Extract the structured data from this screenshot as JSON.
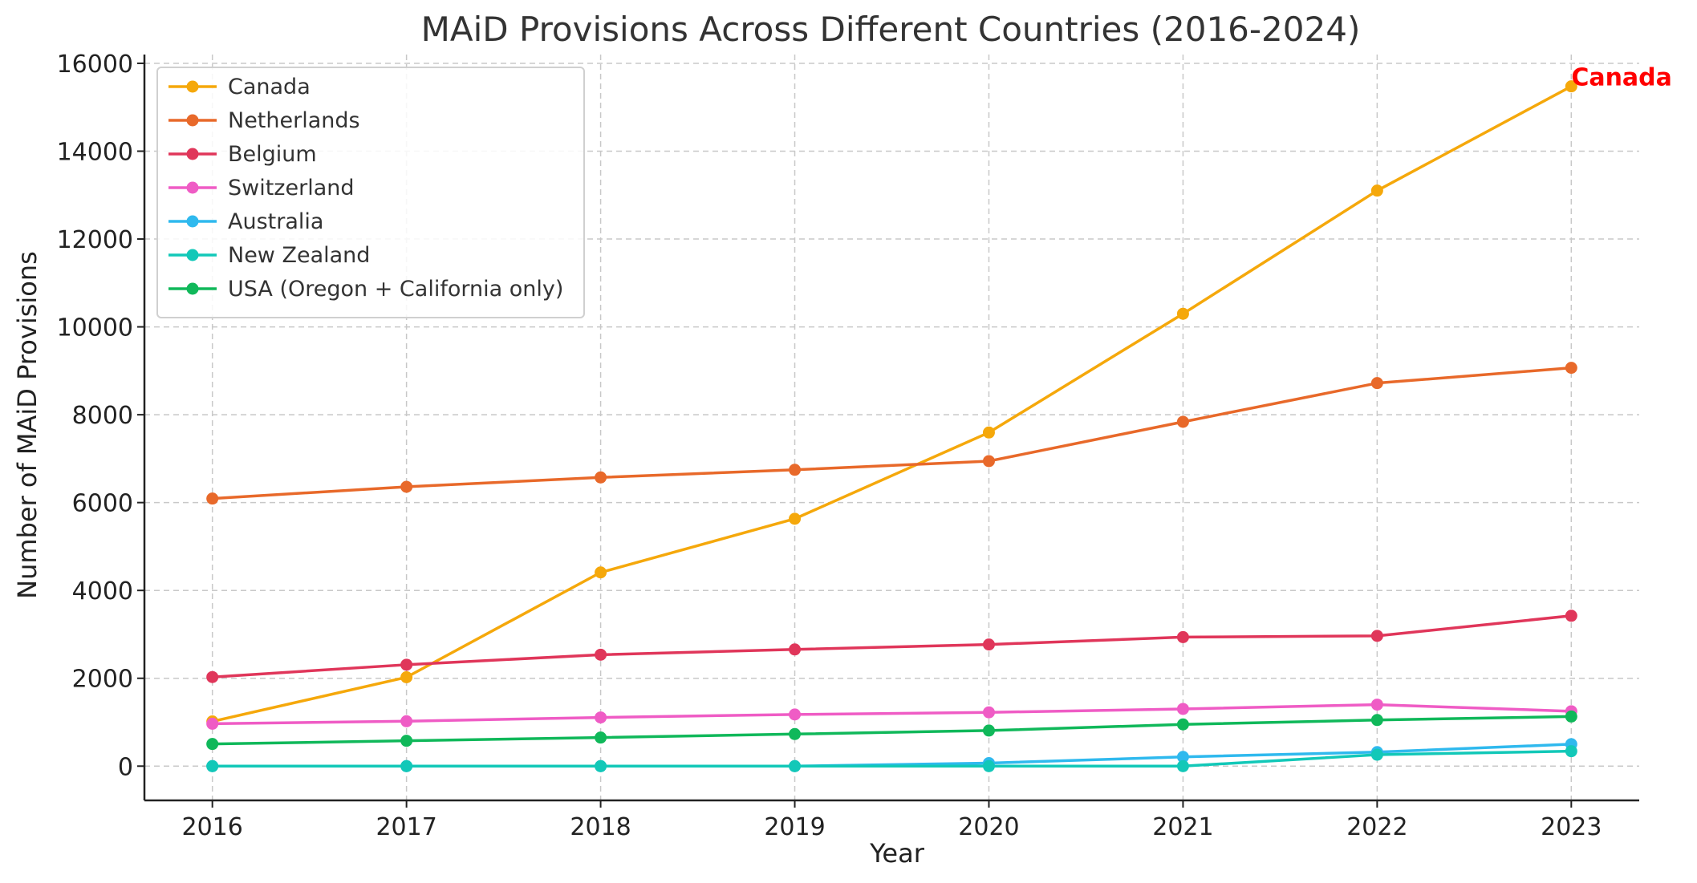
{
  "chart_data": {
    "type": "line",
    "title": "MAiD Provisions Across Different Countries (2016-2024)",
    "xlabel": "Year",
    "ylabel": "Number of MAiD Provisions",
    "categories": [
      "2016",
      "2017",
      "2018",
      "2019",
      "2020",
      "2021",
      "2022",
      "2023"
    ],
    "xlim": [
      2015.65,
      2023.35
    ],
    "ylim": [
      -780,
      16200
    ],
    "yticks": [
      0,
      2000,
      4000,
      6000,
      8000,
      10000,
      12000,
      14000,
      16000
    ],
    "grid": true,
    "legend_position": "top-left",
    "series": [
      {
        "name": "Canada",
        "color": "#f5a80b",
        "values": [
          1018,
          2024,
          4410,
          5631,
          7595,
          10299,
          13102,
          15476
        ]
      },
      {
        "name": "Netherlands",
        "color": "#e8692a",
        "values": [
          6091,
          6359,
          6573,
          6746,
          6944,
          7838,
          8720,
          9068
        ]
      },
      {
        "name": "Belgium",
        "color": "#e0365a",
        "values": [
          2028,
          2309,
          2537,
          2656,
          2769,
          2937,
          2966,
          3423
        ]
      },
      {
        "name": "Switzerland",
        "color": "#ef5cc5",
        "values": [
          965,
          1022,
          1108,
          1176,
          1224,
          1302,
          1400,
          1250
        ]
      },
      {
        "name": "Australia",
        "color": "#2fb9ee",
        "values": [
          0,
          0,
          0,
          0,
          70,
          210,
          320,
          500
        ]
      },
      {
        "name": "New Zealand",
        "color": "#12c8b8",
        "values": [
          0,
          0,
          0,
          0,
          0,
          0,
          260,
          340
        ]
      },
      {
        "name": "USA (Oregon + California only)",
        "color": "#10b85a",
        "values": [
          504,
          577,
          650,
          730,
          810,
          950,
          1050,
          1130
        ]
      }
    ],
    "annotations": [
      {
        "text": "Canada",
        "x": "2023",
        "y": 15476,
        "color": "#ff0000"
      }
    ]
  }
}
